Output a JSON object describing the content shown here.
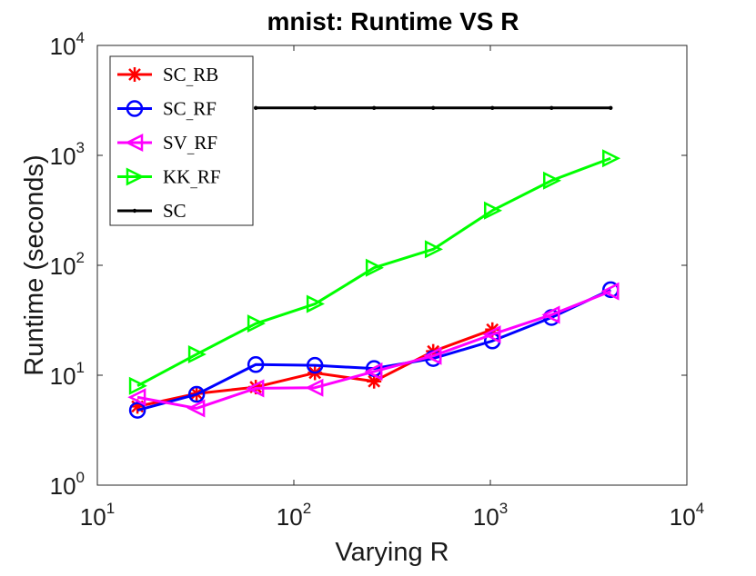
{
  "chart_data": {
    "type": "line",
    "title": "mnist: Runtime VS R",
    "xlabel": "Varying R",
    "ylabel": "Runtime (seconds)",
    "xscale": "log",
    "yscale": "log",
    "xlim": [
      10,
      10000
    ],
    "ylim": [
      1,
      10000
    ],
    "xticks": [
      {
        "value": 10,
        "base": "10",
        "exp": "1"
      },
      {
        "value": 100,
        "base": "10",
        "exp": "2"
      },
      {
        "value": 1000,
        "base": "10",
        "exp": "3"
      },
      {
        "value": 10000,
        "base": "10",
        "exp": "4"
      }
    ],
    "yticks": [
      {
        "value": 1,
        "base": "10",
        "exp": "0"
      },
      {
        "value": 10,
        "base": "10",
        "exp": "1"
      },
      {
        "value": 100,
        "base": "10",
        "exp": "2"
      },
      {
        "value": 1000,
        "base": "10",
        "exp": "3"
      },
      {
        "value": 10000,
        "base": "10",
        "exp": "4"
      }
    ],
    "legend_position": "top-left",
    "series": [
      {
        "name": "SC_RB",
        "label_prefix": "SC",
        "label_suffix": "RB",
        "color": "#ff0000",
        "marker": "star",
        "x": [
          16,
          32,
          64,
          128,
          256,
          512,
          1024
        ],
        "y": [
          5.2,
          6.8,
          7.8,
          10.5,
          8.8,
          16.5,
          26
        ]
      },
      {
        "name": "SC_RF",
        "label_prefix": "SC",
        "label_suffix": "RF",
        "color": "#0000ff",
        "marker": "circle",
        "x": [
          16,
          32,
          64,
          128,
          256,
          512,
          1024,
          2048,
          4096
        ],
        "y": [
          4.8,
          6.7,
          12.5,
          12.3,
          11.5,
          14.2,
          20.5,
          33.5,
          60
        ]
      },
      {
        "name": "SV_RF",
        "label_prefix": "SV",
        "label_suffix": "RF",
        "color": "#ff00ff",
        "marker": "triangle-left",
        "x": [
          16,
          32,
          64,
          128,
          256,
          512,
          1024,
          2048,
          4096
        ],
        "y": [
          6.3,
          5.0,
          7.6,
          7.7,
          10.8,
          15.0,
          23.5,
          35.5,
          58
        ]
      },
      {
        "name": "KK_RF",
        "label_prefix": "KK",
        "label_suffix": "RF",
        "color": "#00ff00",
        "marker": "triangle-right",
        "x": [
          16,
          32,
          64,
          128,
          256,
          512,
          1024,
          2048,
          4096
        ],
        "y": [
          8.0,
          15.5,
          29.5,
          44.5,
          95,
          140,
          315,
          590,
          940
        ]
      },
      {
        "name": "SC",
        "label_prefix": "SC",
        "label_suffix": "",
        "color": "#000000",
        "marker": "dot",
        "x": [
          64,
          128,
          256,
          512,
          1024,
          2048,
          4096
        ],
        "y": [
          2700,
          2700,
          2700,
          2700,
          2700,
          2700,
          2700
        ]
      }
    ]
  }
}
